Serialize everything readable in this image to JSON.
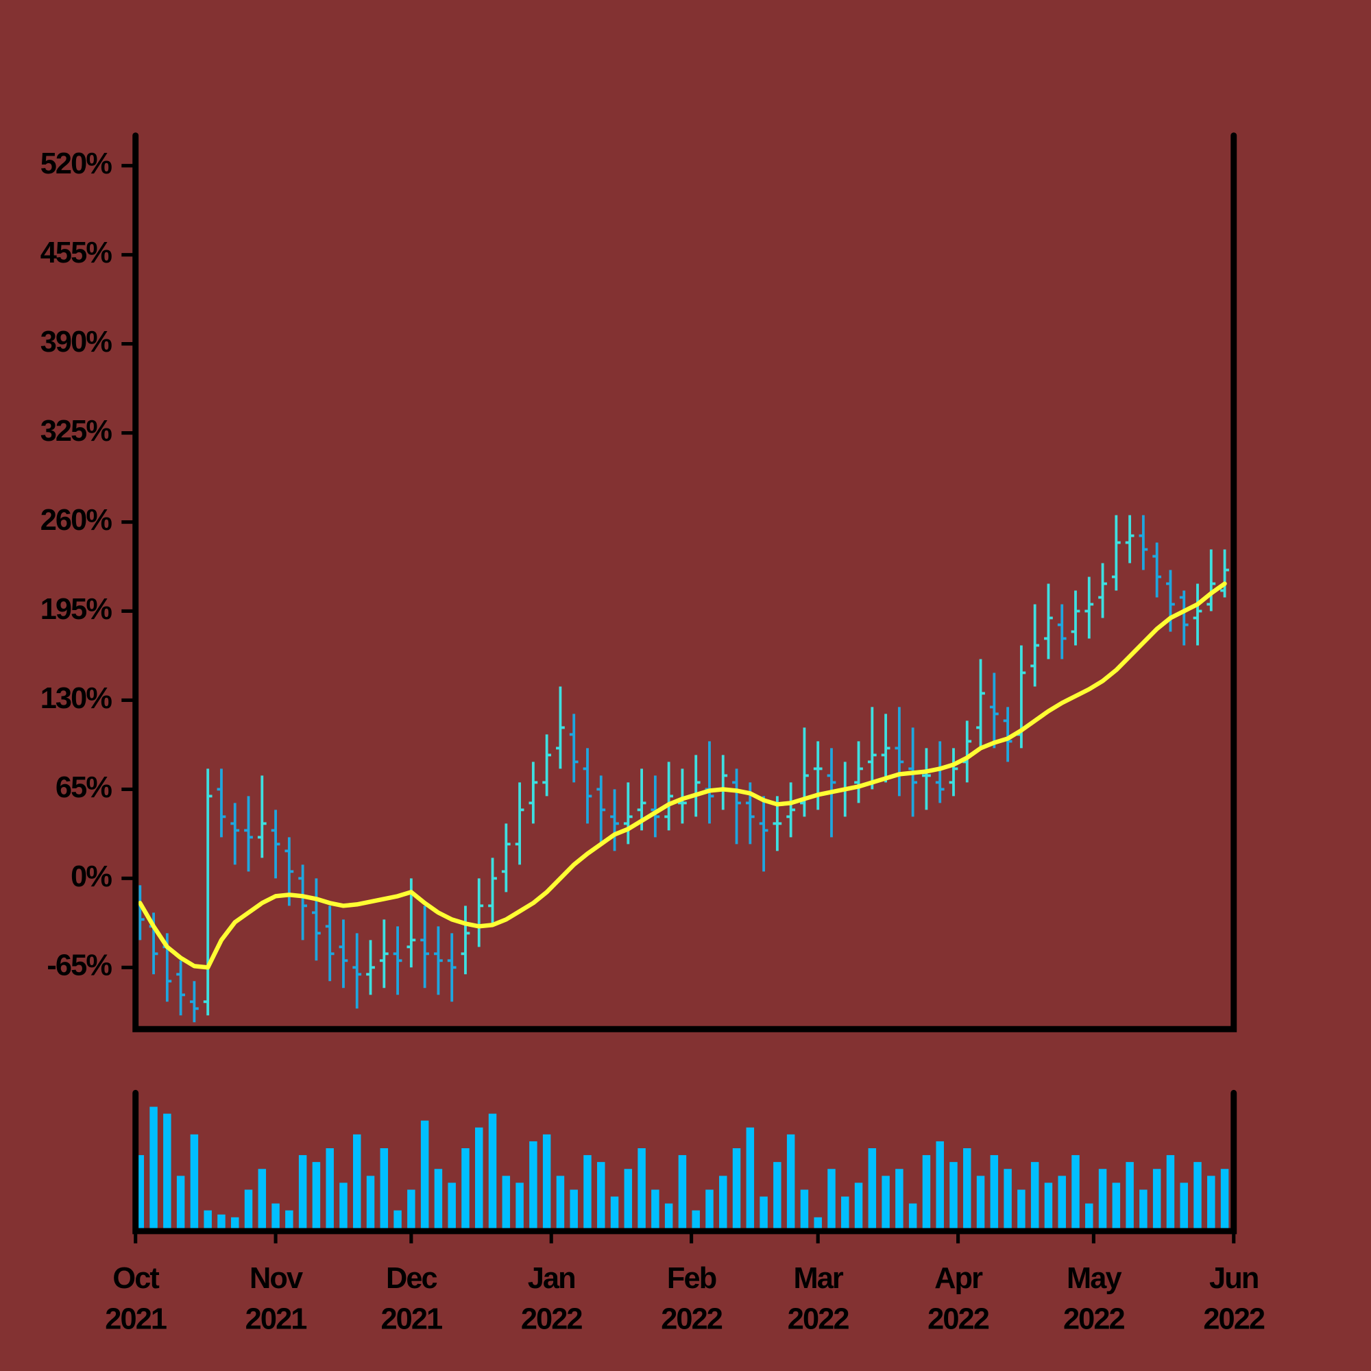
{
  "chart_data": [
    {
      "type": "ohlc",
      "up_color": "#3edfe0",
      "down_color": "#1fa6de",
      "x": [
        1,
        4,
        7,
        10,
        13,
        16,
        19,
        22,
        25,
        28,
        31,
        34,
        37,
        40,
        43,
        46,
        49,
        52,
        55,
        58,
        61,
        64,
        67,
        70,
        73,
        76,
        79,
        82,
        85,
        88,
        91,
        94,
        97,
        100,
        103,
        106,
        109,
        112,
        115,
        118,
        121,
        124,
        127,
        130,
        133,
        136,
        139,
        142,
        145,
        148,
        151,
        154,
        157,
        160,
        163,
        166,
        169,
        172,
        175,
        178,
        181,
        184,
        187,
        190,
        193,
        196,
        199,
        202,
        205,
        208,
        211,
        214,
        217,
        220,
        223,
        226,
        229,
        232,
        235,
        238,
        241
      ],
      "open": [
        -20,
        -35,
        -50,
        -70,
        -90,
        -90,
        65,
        40,
        35,
        30,
        35,
        20,
        0,
        -25,
        -35,
        -50,
        -65,
        -70,
        -60,
        -55,
        -50,
        -45,
        -55,
        -60,
        -55,
        -35,
        -20,
        5,
        25,
        55,
        70,
        95,
        105,
        80,
        65,
        45,
        40,
        50,
        50,
        45,
        55,
        60,
        65,
        65,
        70,
        55,
        40,
        40,
        45,
        55,
        80,
        75,
        65,
        70,
        85,
        90,
        95,
        80,
        75,
        70,
        70,
        85,
        110,
        125,
        115,
        105,
        155,
        175,
        185,
        180,
        195,
        205,
        220,
        245,
        250,
        235,
        215,
        205,
        190,
        200,
        210
      ],
      "high": [
        -5,
        -25,
        -40,
        -60,
        -75,
        80,
        80,
        55,
        60,
        75,
        50,
        30,
        10,
        0,
        -20,
        -30,
        -40,
        -45,
        -30,
        -35,
        0,
        -20,
        -35,
        -40,
        -20,
        0,
        15,
        40,
        70,
        85,
        105,
        140,
        120,
        95,
        75,
        65,
        70,
        80,
        75,
        85,
        80,
        90,
        100,
        90,
        80,
        70,
        60,
        60,
        70,
        110,
        100,
        95,
        85,
        100,
        125,
        120,
        125,
        110,
        95,
        100,
        95,
        115,
        160,
        150,
        125,
        170,
        200,
        215,
        200,
        210,
        220,
        230,
        265,
        265,
        265,
        245,
        225,
        210,
        215,
        240,
        240
      ],
      "low": [
        -45,
        -70,
        -90,
        -100,
        -105,
        -100,
        30,
        10,
        5,
        15,
        0,
        -20,
        -45,
        -60,
        -75,
        -80,
        -95,
        -85,
        -80,
        -85,
        -65,
        -80,
        -85,
        -90,
        -70,
        -50,
        -35,
        -10,
        10,
        40,
        60,
        80,
        70,
        40,
        25,
        20,
        25,
        35,
        30,
        35,
        40,
        45,
        40,
        50,
        25,
        25,
        5,
        20,
        30,
        45,
        50,
        30,
        45,
        55,
        65,
        70,
        60,
        45,
        50,
        55,
        60,
        70,
        95,
        95,
        85,
        95,
        140,
        160,
        160,
        170,
        175,
        190,
        210,
        230,
        225,
        205,
        180,
        170,
        170,
        195,
        205
      ],
      "close": [
        -30,
        -55,
        -75,
        -85,
        -95,
        60,
        45,
        35,
        30,
        40,
        25,
        5,
        -20,
        -40,
        -55,
        -60,
        -70,
        -65,
        -55,
        -60,
        -45,
        -55,
        -60,
        -65,
        -40,
        -20,
        0,
        25,
        50,
        70,
        90,
        110,
        85,
        60,
        50,
        40,
        45,
        55,
        45,
        60,
        55,
        70,
        60,
        75,
        55,
        45,
        35,
        40,
        50,
        75,
        80,
        70,
        65,
        80,
        90,
        95,
        85,
        70,
        75,
        65,
        80,
        100,
        135,
        120,
        100,
        150,
        170,
        190,
        175,
        195,
        200,
        215,
        245,
        250,
        240,
        220,
        200,
        185,
        195,
        215,
        225
      ],
      "ma": {
        "color": "#ffff33",
        "values": [
          -18,
          -35,
          -50,
          -58,
          -64,
          -65,
          -45,
          -32,
          -25,
          -18,
          -13,
          -12,
          -13,
          -15,
          -18,
          -20,
          -19,
          -17,
          -15,
          -13,
          -10,
          -18,
          -25,
          -30,
          -33,
          -35,
          -34,
          -30,
          -24,
          -18,
          -10,
          0,
          10,
          18,
          25,
          32,
          36,
          42,
          48,
          54,
          58,
          61,
          64,
          65,
          64,
          62,
          57,
          54,
          55,
          58,
          61,
          63,
          65,
          67,
          70,
          73,
          76,
          77,
          78,
          80,
          83,
          88,
          95,
          99,
          102,
          108,
          115,
          122,
          128,
          133,
          138,
          144,
          152,
          162,
          172,
          182,
          190,
          195,
          200,
          208,
          215
        ]
      },
      "xlim": [
        0,
        243
      ],
      "ylim": [
        -110,
        542
      ],
      "yticks": [
        {
          "value": -65,
          "label": "-65%"
        },
        {
          "value": 0,
          "label": "0%"
        },
        {
          "value": 65,
          "label": "65%"
        },
        {
          "value": 130,
          "label": "130%"
        },
        {
          "value": 195,
          "label": "195%"
        },
        {
          "value": 260,
          "label": "260%"
        },
        {
          "value": 325,
          "label": "325%"
        },
        {
          "value": 390,
          "label": "390%"
        },
        {
          "value": 455,
          "label": "455%"
        },
        {
          "value": 520,
          "label": "520%"
        }
      ]
    },
    {
      "type": "bar",
      "color": "#00bfff",
      "x": [
        1,
        4,
        7,
        10,
        13,
        16,
        19,
        22,
        25,
        28,
        31,
        34,
        37,
        40,
        43,
        46,
        49,
        52,
        55,
        58,
        61,
        64,
        67,
        70,
        73,
        76,
        79,
        82,
        85,
        88,
        91,
        94,
        97,
        100,
        103,
        106,
        109,
        112,
        115,
        118,
        121,
        124,
        127,
        130,
        133,
        136,
        139,
        142,
        145,
        148,
        151,
        154,
        157,
        160,
        163,
        166,
        169,
        172,
        175,
        178,
        181,
        184,
        187,
        190,
        193,
        196,
        199,
        202,
        205,
        208,
        211,
        214,
        217,
        220,
        223,
        226,
        229,
        232,
        235,
        238,
        241
      ],
      "values": [
        55,
        90,
        85,
        40,
        70,
        15,
        12,
        10,
        30,
        45,
        20,
        15,
        55,
        50,
        60,
        35,
        70,
        40,
        60,
        15,
        30,
        80,
        45,
        35,
        60,
        75,
        85,
        40,
        35,
        65,
        70,
        40,
        30,
        55,
        50,
        25,
        45,
        60,
        30,
        20,
        55,
        15,
        30,
        40,
        60,
        75,
        25,
        50,
        70,
        30,
        10,
        45,
        25,
        35,
        60,
        40,
        45,
        20,
        55,
        65,
        50,
        60,
        40,
        55,
        45,
        30,
        50,
        35,
        40,
        55,
        20,
        45,
        35,
        50,
        30,
        45,
        55,
        35,
        50,
        40,
        45
      ],
      "xlim": [
        0,
        243
      ],
      "ylim": [
        0,
        100
      ],
      "xticks": [
        {
          "value": 0,
          "label": [
            "Oct",
            "2021"
          ]
        },
        {
          "value": 31,
          "label": [
            "Nov",
            "2021"
          ]
        },
        {
          "value": 61,
          "label": [
            "Dec",
            "2021"
          ]
        },
        {
          "value": 92,
          "label": [
            "Jan",
            "2022"
          ]
        },
        {
          "value": 123,
          "label": [
            "Feb",
            "2022"
          ]
        },
        {
          "value": 151,
          "label": [
            "Mar",
            "2022"
          ]
        },
        {
          "value": 182,
          "label": [
            "Apr",
            "2022"
          ]
        },
        {
          "value": 212,
          "label": [
            "May",
            "2022"
          ]
        },
        {
          "value": 243,
          "label": [
            "Jun",
            "2022"
          ]
        }
      ]
    }
  ]
}
